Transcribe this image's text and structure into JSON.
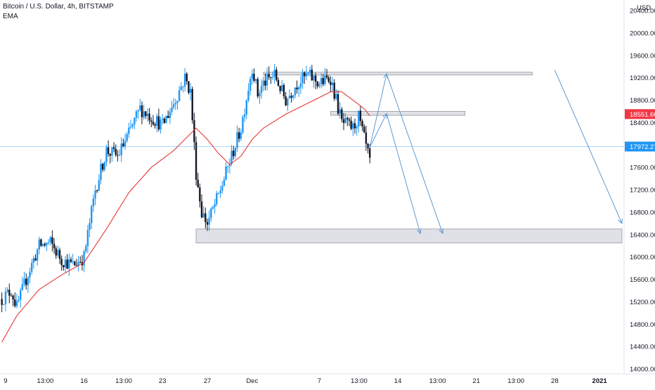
{
  "header": {
    "symbol": "Bitcoin / U.S. Dollar, 4h, BITSTAMP",
    "indicator": "EMA"
  },
  "price_axis": {
    "currency": "USD",
    "ticks": [
      "20400.00",
      "20000.00",
      "19600.00",
      "19200.00",
      "18800.00",
      "18400.00",
      "18000.00",
      "17600.00",
      "17200.00",
      "16800.00",
      "16400.00",
      "16000.00",
      "15600.00",
      "15200.00",
      "14800.00",
      "14400.00",
      "14000.00"
    ],
    "current_price_label": "18551.60",
    "crosshair_price_label": "17972.27"
  },
  "time_axis": {
    "labels": [
      "9",
      "13:00",
      "16",
      "13:00",
      "23",
      "27",
      "Dec",
      "7",
      "13:00",
      "14",
      "13:00",
      "21",
      "13:00",
      "28",
      "2021"
    ]
  },
  "colors": {
    "up": "#2196f3",
    "down": "#131722",
    "ema": "#e53935",
    "zone_fill": "#d1d4dc",
    "zone_border": "#9598a1",
    "arrow": "#5b9bd5",
    "crosshair": "#2196f3",
    "current_price_tag": "#f23645",
    "crosshair_tag": "#2196f3"
  },
  "chart_data": {
    "type": "candlestick",
    "title": "Bitcoin / U.S. Dollar, 4h, BITSTAMP",
    "ylim": [
      13980,
      20750
    ],
    "x_range": [
      "2020-11-08",
      "2021-01-03"
    ],
    "series": [
      {
        "name": "EMA",
        "kind": "line",
        "points": [
          [
            "2020-11-08T16:00",
            14480
          ],
          [
            "2020-11-10T00:00",
            14950
          ],
          [
            "2020-11-12T00:00",
            15420
          ],
          [
            "2020-11-14T00:00",
            15680
          ],
          [
            "2020-11-16T00:00",
            15900
          ],
          [
            "2020-11-18T00:00",
            16500
          ],
          [
            "2020-11-20T00:00",
            17150
          ],
          [
            "2020-11-22T00:00",
            17600
          ],
          [
            "2020-11-24T00:00",
            17900
          ],
          [
            "2020-11-26T00:00",
            18300
          ],
          [
            "2020-11-27T00:00",
            18100
          ],
          [
            "2020-11-28T00:00",
            17850
          ],
          [
            "2020-11-29T00:00",
            17650
          ],
          [
            "2020-11-30T00:00",
            17800
          ],
          [
            "2020-12-01T00:00",
            18100
          ],
          [
            "2020-12-02T00:00",
            18300
          ],
          [
            "2020-12-04T00:00",
            18550
          ],
          [
            "2020-12-06T00:00",
            18750
          ],
          [
            "2020-12-08T00:00",
            18950
          ],
          [
            "2020-12-09T00:00",
            18950
          ],
          [
            "2020-12-10T00:00",
            18800
          ],
          [
            "2020-12-11T00:00",
            18650
          ],
          [
            "2020-12-11T12:00",
            18520
          ]
        ]
      }
    ],
    "candle_path": [
      [
        "2020-11-08T16:00",
        15250
      ],
      [
        "2020-11-09T12:00",
        15400
      ],
      [
        "2020-11-10T00:00",
        15100
      ],
      [
        "2020-11-11T00:00",
        15700
      ],
      [
        "2020-11-12T00:00",
        16200
      ],
      [
        "2020-11-13T00:00",
        16250
      ],
      [
        "2020-11-14T00:00",
        15950
      ],
      [
        "2020-11-15T00:00",
        15850
      ],
      [
        "2020-11-16T00:00",
        16000
      ],
      [
        "2020-11-17T00:00",
        17200
      ],
      [
        "2020-11-18T00:00",
        17900
      ],
      [
        "2020-11-19T00:00",
        17800
      ],
      [
        "2020-11-20T00:00",
        18200
      ],
      [
        "2020-11-21T00:00",
        18650
      ],
      [
        "2020-11-22T00:00",
        18500
      ],
      [
        "2020-11-23T00:00",
        18350
      ],
      [
        "2020-11-24T00:00",
        18750
      ],
      [
        "2020-11-25T00:00",
        19200
      ],
      [
        "2020-11-25T12:00",
        18950
      ],
      [
        "2020-11-26T00:00",
        17500
      ],
      [
        "2020-11-26T12:00",
        16800
      ],
      [
        "2020-11-27T00:00",
        16600
      ],
      [
        "2020-11-28T00:00",
        17100
      ],
      [
        "2020-11-29T00:00",
        17700
      ],
      [
        "2020-11-30T00:00",
        18300
      ],
      [
        "2020-12-01T00:00",
        19400
      ],
      [
        "2020-12-01T12:00",
        18900
      ],
      [
        "2020-12-02T00:00",
        19100
      ],
      [
        "2020-12-03T00:00",
        19250
      ],
      [
        "2020-12-04T00:00",
        18800
      ],
      [
        "2020-12-05T00:00",
        19100
      ],
      [
        "2020-12-06T00:00",
        19250
      ],
      [
        "2020-12-07T00:00",
        19100
      ],
      [
        "2020-12-08T00:00",
        19200
      ],
      [
        "2020-12-09T00:00",
        18400
      ],
      [
        "2020-12-10T00:00",
        18300
      ],
      [
        "2020-12-10T12:00",
        18500
      ],
      [
        "2020-12-11T00:00",
        18100
      ],
      [
        "2020-12-11T12:00",
        17700
      ]
    ],
    "zones": [
      {
        "x": [
          "2020-11-26T00:00",
          "2021-01-03T00:00"
        ],
        "y": [
          16250,
          16500
        ]
      },
      {
        "x": [
          "2020-12-02T00:00",
          "2020-12-26T00:00"
        ],
        "y": [
          19250,
          19300
        ]
      },
      {
        "x": [
          "2020-12-08T00:00",
          "2020-12-20T00:00"
        ],
        "y": [
          18530,
          18600
        ]
      }
    ],
    "projection_paths": [
      [
        [
          "2020-12-11T12:00",
          17960
        ],
        [
          "2020-12-13T00:00",
          19270
        ],
        [
          "2020-12-18T00:00",
          16420
        ]
      ],
      [
        [
          "2020-12-11T12:00",
          17960
        ],
        [
          "2020-12-13T00:00",
          18560
        ],
        [
          "2020-12-16T00:00",
          16420
        ]
      ],
      [
        [
          "2020-12-28T00:00",
          19340
        ],
        [
          "2021-01-03T00:00",
          16600
        ]
      ]
    ],
    "current_price": 18551.6,
    "crosshair_price": 17972.27,
    "grid": false,
    "legend": "top-left"
  }
}
